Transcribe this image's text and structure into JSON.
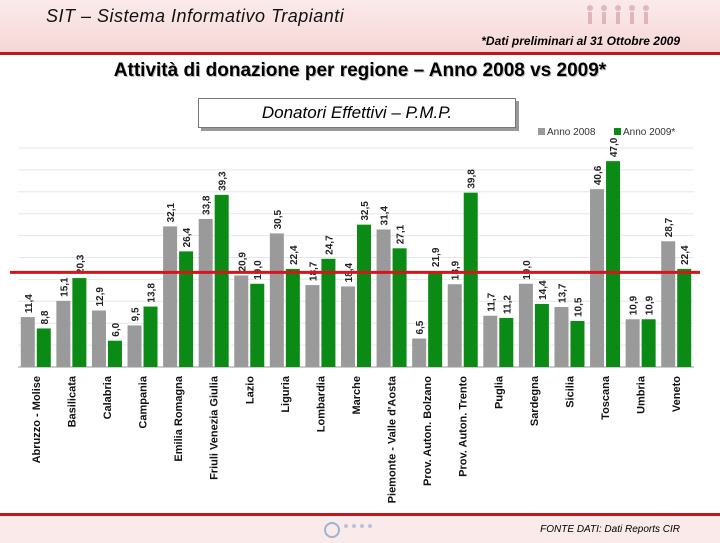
{
  "header": {
    "app_title": "SIT – Sistema Informativo Trapianti",
    "note": "*Dati preliminari al 31 Ottobre 2009"
  },
  "main_title": "Attività di donazione per regione – Anno 2008 vs 2009*",
  "chart_data": {
    "type": "bar",
    "title": "Donatori Effettivi – P.M.P.",
    "categories": [
      "Abruzzo - Molise",
      "Basilicata",
      "Calabria",
      "Campania",
      "Emilia Romagna",
      "Friuli Venezia Giulia",
      "Lazio",
      "Liguria",
      "Lombardia",
      "Marche",
      "Piemonte - Valle d'Aosta",
      "Prov. Auton. Bolzano",
      "Prov. Auton. Trento",
      "Puglia",
      "Sardegna",
      "Sicilia",
      "Toscana",
      "Umbria",
      "Veneto"
    ],
    "series": [
      {
        "name": "Anno 2008",
        "color": "#9a9a9a",
        "values": [
          11.4,
          15.1,
          12.9,
          9.5,
          32.1,
          33.8,
          20.9,
          30.5,
          18.7,
          18.4,
          31.4,
          6.5,
          18.9,
          11.7,
          19.0,
          13.7,
          40.6,
          10.9,
          28.7
        ]
      },
      {
        "name": "Anno 2009*",
        "color": "#0b8a16",
        "values": [
          8.8,
          20.3,
          6.0,
          13.8,
          26.4,
          39.3,
          19.0,
          22.4,
          24.7,
          32.5,
          27.1,
          21.9,
          39.8,
          11.2,
          14.4,
          10.5,
          47.0,
          10.9,
          22.4
        ]
      }
    ],
    "value_labels_2008": [
      "11,4",
      "15,1",
      "12,9",
      "9,5",
      "32,1",
      "33,8",
      "20,9",
      "30,5",
      "18,7",
      "18,4",
      "31,4",
      "6,5",
      "18,9",
      "11,7",
      "19,0",
      "13,7",
      "40,6",
      "10,9",
      "28,7"
    ],
    "value_labels_2009": [
      "8,8",
      "20,3",
      "6,0",
      "13,8",
      "26,4",
      "39,3",
      "19,0",
      "22,4",
      "24,7",
      "32,5",
      "27,1",
      "21,9",
      "39,8",
      "11,2",
      "14,4",
      "10,5",
      "47,0",
      "10,9",
      "22,4"
    ],
    "reference_value": 21.6,
    "ylim": [
      0,
      50
    ],
    "grid": true,
    "legend": "top-right"
  },
  "footer": {
    "source": "FONTE DATI: Dati Reports CIR"
  }
}
